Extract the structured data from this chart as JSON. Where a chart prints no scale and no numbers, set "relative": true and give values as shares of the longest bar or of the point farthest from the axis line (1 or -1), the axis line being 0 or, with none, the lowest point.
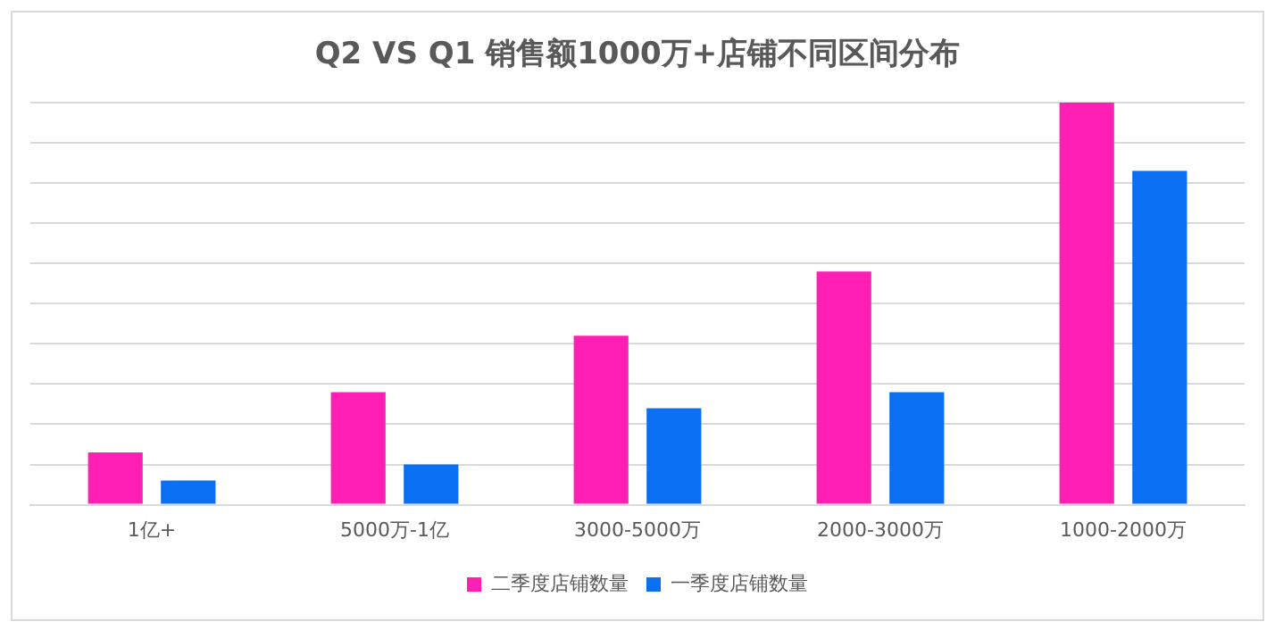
{
  "chart_data": {
    "type": "bar",
    "title": "Q2 VS Q1 销售额1000万+店铺不同区间分布",
    "categories": [
      "1亿+",
      "5000万-1亿",
      "3000-5000万",
      "2000-3000万",
      "1000-2000万"
    ],
    "relative": true,
    "grid": "y",
    "legend": "bottom",
    "series": [
      {
        "name": "二季度店铺数量",
        "color": "#ff1fb4",
        "values": [
          0.13,
          0.28,
          0.42,
          0.58,
          1
        ]
      },
      {
        "name": "一季度店铺数量",
        "color": "#0a6ff0",
        "values": [
          0.06,
          0.1,
          0.24,
          0.28,
          0.83
        ]
      }
    ]
  }
}
